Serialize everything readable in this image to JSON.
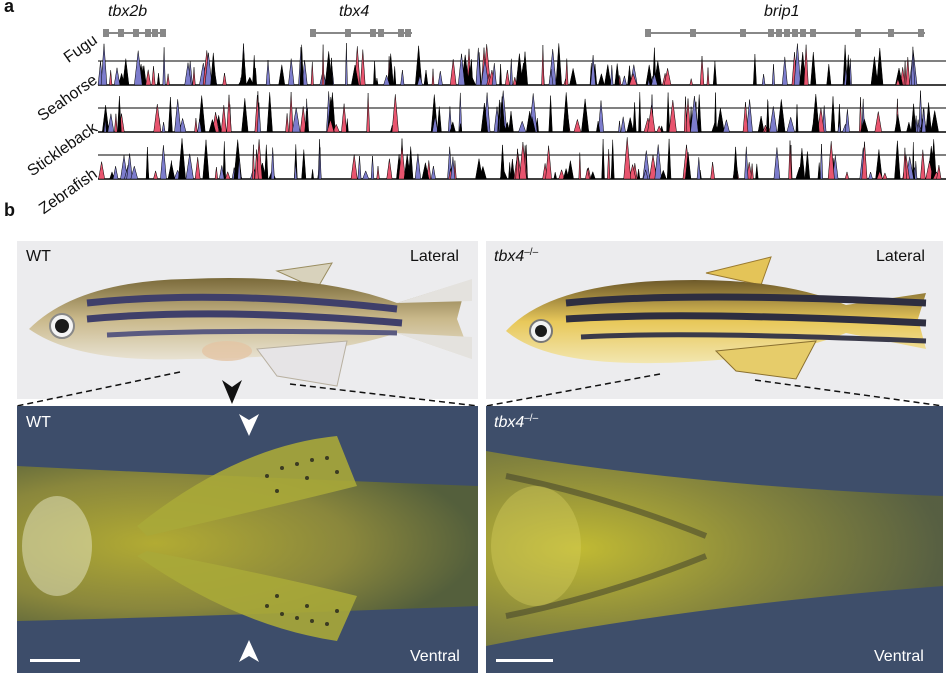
{
  "panel_a": {
    "letter": "a",
    "genes": [
      "tbx2b",
      "tbx4",
      "brip1"
    ],
    "species": [
      "Fugu",
      "Seahorse",
      "Stickleback",
      "Zebrafish"
    ],
    "colors": {
      "conserved_coding": "#7c7ccc",
      "conserved_noncoding": "#e8546e",
      "trace": "#000000",
      "gene_model": "#888888"
    }
  },
  "panel_b": {
    "letter": "b",
    "wt_lateral": {
      "genotype": "WT",
      "view": "Lateral"
    },
    "mut_lateral": {
      "genotype": "tbx4",
      "superscript": "–/–",
      "view": "Lateral"
    },
    "wt_ventral": {
      "genotype": "WT",
      "view": "Ventral"
    },
    "mut_ventral": {
      "genotype": "tbx4",
      "superscript": "–/–",
      "view": "Ventral"
    }
  }
}
